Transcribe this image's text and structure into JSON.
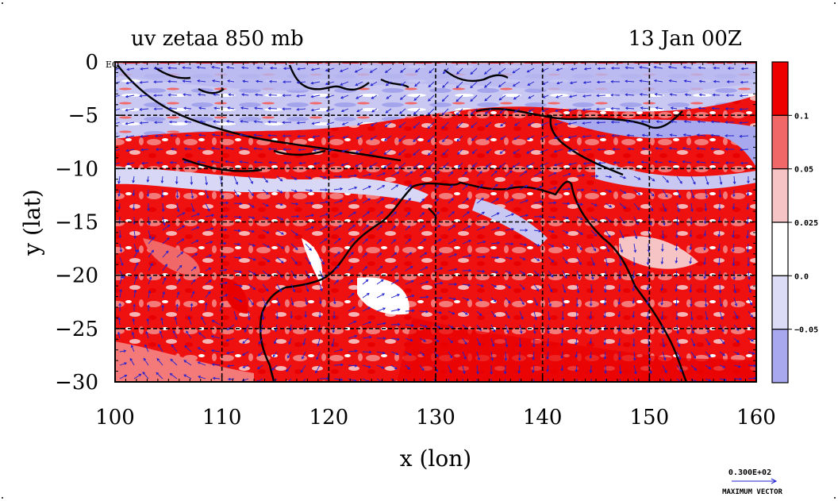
{
  "title": {
    "left": "uv zetaa 850 mb",
    "right": "13 Jan 00Z"
  },
  "axes": {
    "xlabel": "x (lon)",
    "ylabel": "y (lat)",
    "x_range": [
      100,
      160
    ],
    "y_range": [
      -30,
      0
    ],
    "x_ticks": [
      100,
      110,
      120,
      130,
      140,
      150,
      160
    ],
    "y_ticks": [
      0,
      -5,
      -10,
      -15,
      -20,
      -25,
      -30
    ],
    "x_tick_labels": [
      "100",
      "110",
      "120",
      "130",
      "140",
      "150",
      "160"
    ],
    "y_tick_labels": [
      "0",
      "−5",
      "−10",
      "−15",
      "−20",
      "−25",
      "−30"
    ],
    "y_zero_suffix": "EQ"
  },
  "colorbar": {
    "levels": [
      "0.1",
      "0.05",
      "0.025",
      "0.0",
      "−0.05"
    ],
    "colors": [
      "#ef0000",
      "#f06868",
      "#f6c4c4",
      "#ffffff",
      "#dcdcf6",
      "#a8a8ee"
    ]
  },
  "vector_key": {
    "value": "0.300E+02",
    "label": "MAXIMUM VECTOR"
  },
  "colors": {
    "land_outline": "#000000",
    "vectors": "#2020d0",
    "grid": "#000000"
  }
}
